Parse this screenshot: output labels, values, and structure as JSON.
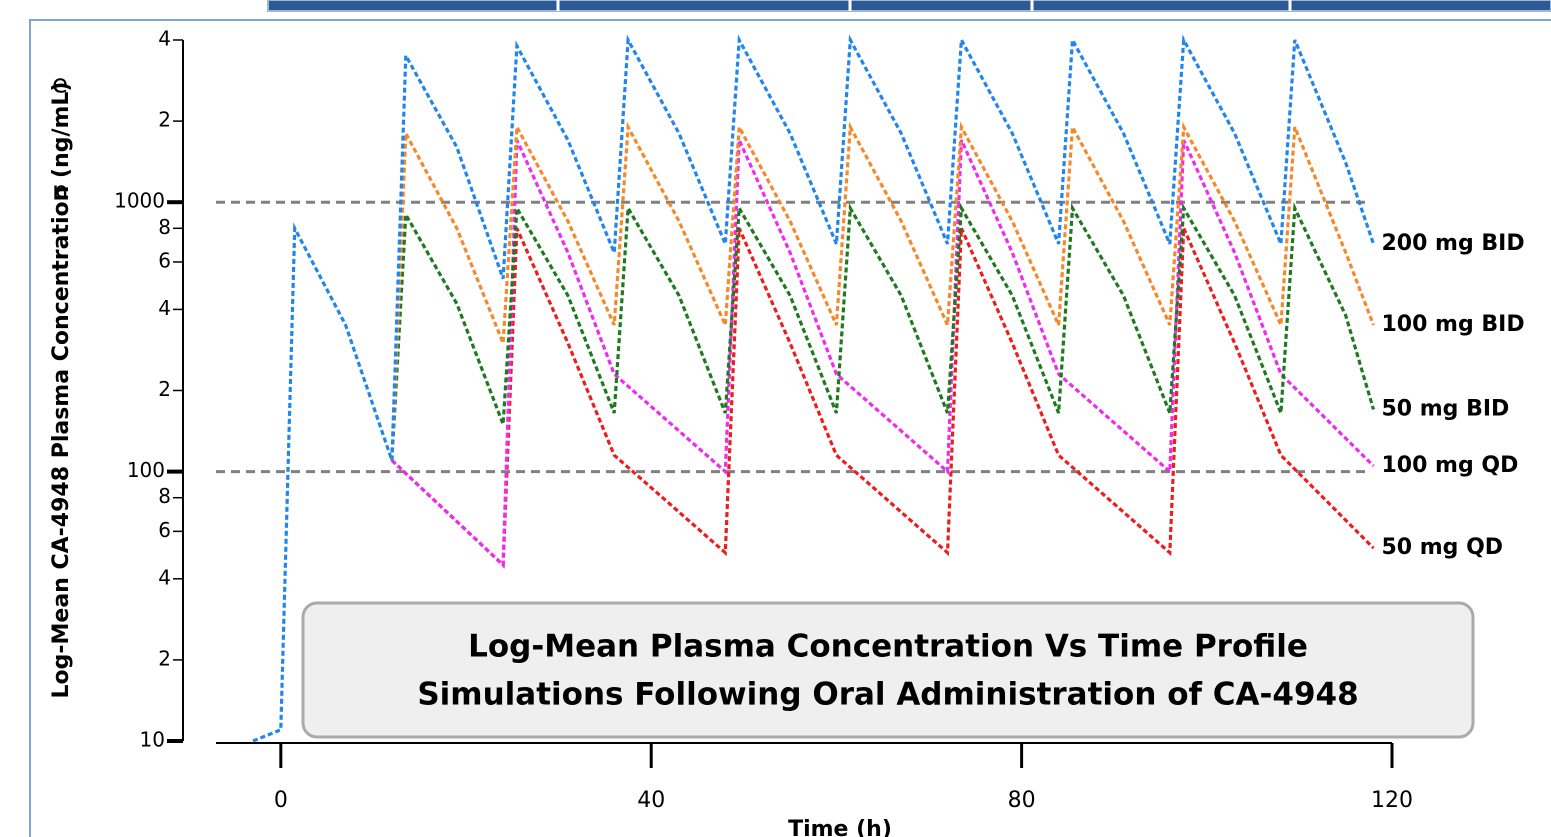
{
  "chart_data": {
    "type": "line",
    "title": "Log-Mean Plasma Concentration Vs Time Profile",
    "subtitle": "Simulations Following Oral Administration of CA-4948",
    "x_label": "Time (h)",
    "y_label": "Log-Mean CA-4948 Plasma Concentration (ng/mL)",
    "fragments": [
      "e",
      "n"
    ],
    "log_y": true,
    "xlim": [
      -7,
      120
    ],
    "xticks": [
      0,
      40,
      80,
      120
    ],
    "ylim": [
      10,
      4000
    ],
    "yticks": [
      10,
      {
        "value": 20,
        "label": "2"
      },
      {
        "value": 40,
        "label": "4"
      },
      {
        "value": 60,
        "label": "6"
      },
      {
        "value": 80,
        "label": "8"
      },
      100,
      {
        "value": 200,
        "label": "2"
      },
      {
        "value": 400,
        "label": "4"
      },
      {
        "value": 600,
        "label": "6"
      },
      {
        "value": 800,
        "label": "8"
      },
      1000,
      {
        "value": 2000,
        "label": "2"
      },
      {
        "value": 4000,
        "label": "4"
      }
    ],
    "reference_lines": [
      100,
      1000
    ],
    "series": [
      {
        "name": "200 mg BID",
        "color": "#1f86ef",
        "x": [
          -3,
          0,
          1.5,
          7,
          12,
          13.5,
          19,
          24,
          25.5,
          31,
          36,
          37.5,
          43,
          48,
          49.5,
          55,
          60,
          61.5,
          67,
          72,
          73.5,
          79,
          84,
          85.5,
          91,
          96,
          97.5,
          103,
          108,
          109.5,
          115,
          118
        ],
        "values": [
          10,
          11,
          800,
          350,
          110,
          3500,
          1600,
          520,
          3800,
          1700,
          650,
          4000,
          1800,
          700,
          4000,
          1800,
          700,
          4000,
          1800,
          700,
          4000,
          1800,
          700,
          4000,
          1800,
          700,
          4000,
          1800,
          700,
          4000,
          1400,
          700
        ]
      },
      {
        "name": "100 mg BID",
        "color": "#f7882a",
        "x": [
          12,
          13.5,
          19,
          24,
          25.5,
          31,
          36,
          37.5,
          43,
          48,
          49.5,
          55,
          60,
          61.5,
          67,
          72,
          73.5,
          79,
          84,
          85.5,
          91,
          96,
          97.5,
          103,
          108,
          109.5,
          115,
          118
        ],
        "values": [
          110,
          1800,
          800,
          300,
          1900,
          850,
          350,
          1900,
          850,
          350,
          1900,
          850,
          350,
          1900,
          850,
          350,
          1900,
          850,
          350,
          1900,
          850,
          350,
          1900,
          850,
          350,
          1900,
          650,
          350
        ]
      },
      {
        "name": "50 mg BID",
        "color": "#1e7a1e",
        "x": [
          12,
          13.5,
          19,
          24,
          25.5,
          31,
          36,
          37.5,
          43,
          48,
          49.5,
          55,
          60,
          61.5,
          67,
          72,
          73.5,
          79,
          84,
          85.5,
          91,
          96,
          97.5,
          103,
          108,
          109.5,
          115,
          118
        ],
        "values": [
          110,
          900,
          420,
          150,
          950,
          450,
          165,
          950,
          450,
          165,
          950,
          450,
          165,
          950,
          450,
          165,
          950,
          450,
          165,
          950,
          450,
          165,
          950,
          450,
          165,
          950,
          380,
          170
        ]
      },
      {
        "name": "100 mg QD",
        "color": "#f02af0",
        "x": [
          12,
          24,
          25.5,
          31,
          36,
          48,
          49.5,
          55,
          60,
          72,
          73.5,
          79,
          84,
          96,
          97.5,
          103,
          108,
          118
        ],
        "values": [
          110,
          45,
          1700,
          650,
          230,
          100,
          1700,
          650,
          230,
          100,
          1700,
          650,
          230,
          100,
          1700,
          650,
          230,
          105
        ]
      },
      {
        "name": "50 mg QD",
        "color": "#ee1c1c",
        "x": [
          12,
          24,
          25.5,
          31,
          36,
          48,
          49.5,
          55,
          60,
          72,
          73.5,
          79,
          84,
          96,
          97.5,
          103,
          108,
          118
        ],
        "values": [
          110,
          45,
          800,
          300,
          115,
          50,
          800,
          300,
          115,
          50,
          800,
          300,
          115,
          50,
          800,
          300,
          115,
          52
        ]
      }
    ]
  }
}
